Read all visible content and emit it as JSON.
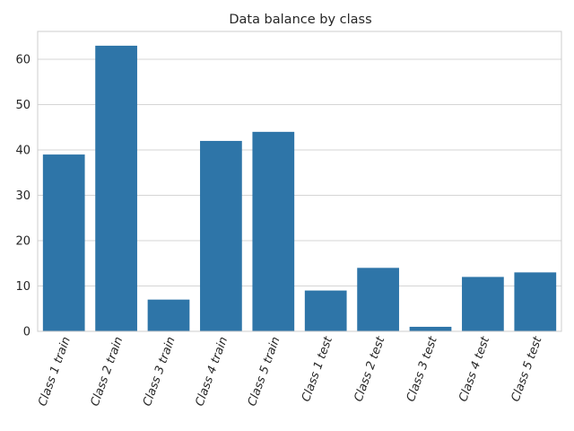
{
  "chart_data": {
    "type": "bar",
    "title": "Data balance by class",
    "xlabel": "",
    "ylabel": "",
    "categories": [
      "Class 1 train",
      "Class 2 train",
      "Class 3 train",
      "Class 4 train",
      "Class 5 train",
      "Class 1 test",
      "Class 2 test",
      "Class 3 test",
      "Class 4 test",
      "Class 5 test"
    ],
    "values": [
      39,
      63,
      7,
      42,
      44,
      9,
      14,
      1,
      12,
      13
    ],
    "ylim": [
      0,
      66.15
    ],
    "yticks": [
      0,
      10,
      20,
      30,
      40,
      50,
      60
    ],
    "grid": "horizontal",
    "bar_color": "#2e75a8",
    "grid_color": "#d5d5d5",
    "spine_color": "#cccccc"
  }
}
